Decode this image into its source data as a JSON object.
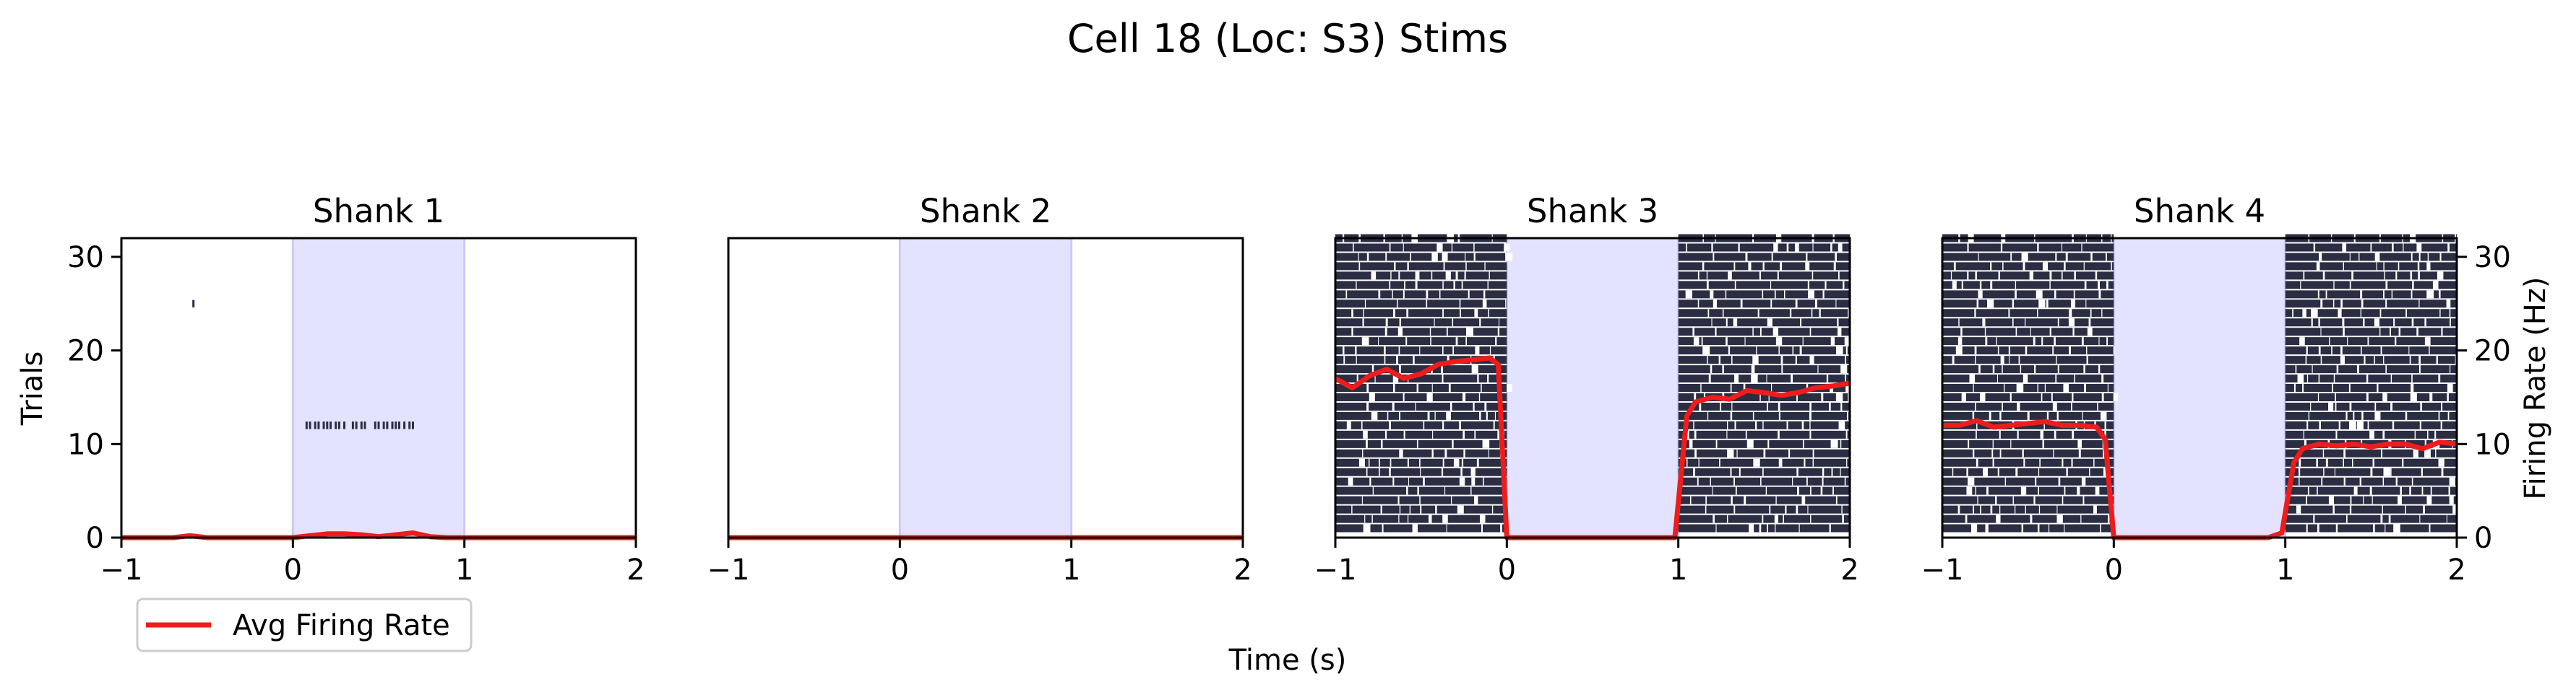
{
  "figure": {
    "title": "Cell 18 (Loc: S3) Stims",
    "xlabel": "Time (s)",
    "left_ylabel": "Trials",
    "right_ylabel": "Firing Rate (Hz)",
    "legend": {
      "label": "Avg Firing Rate",
      "color": "#ee1c1c",
      "placement": "lower-left"
    }
  },
  "colors": {
    "spike": "#2b2d42",
    "stim_fill": "#e3e3ff",
    "stim_edge": "#c9c9f4",
    "rate_line": "#ee1c1c",
    "axis": "#000000"
  },
  "chart_data": [
    {
      "type": "raster",
      "title": "Shank 1",
      "xlim": [
        -1,
        2
      ],
      "ylim": [
        0,
        32
      ],
      "xticks": [
        -1,
        0,
        1,
        2
      ],
      "yticks": [
        0,
        10,
        20,
        30
      ],
      "stim_window": [
        0,
        1
      ],
      "n_trials": 32,
      "spikes": [
        {
          "trial": 25,
          "times": [
            -0.58
          ]
        },
        {
          "trial": 12,
          "times": [
            0.08,
            0.1,
            0.13,
            0.15,
            0.18,
            0.2,
            0.22,
            0.25,
            0.27,
            0.3,
            0.35,
            0.37,
            0.4,
            0.42,
            0.48,
            0.5,
            0.53,
            0.55,
            0.58,
            0.6,
            0.62,
            0.65,
            0.68,
            0.7
          ]
        }
      ],
      "rate": {
        "x": [
          -1,
          -0.9,
          -0.8,
          -0.7,
          -0.6,
          -0.5,
          -0.4,
          -0.3,
          -0.2,
          -0.1,
          0,
          0.1,
          0.2,
          0.3,
          0.4,
          0.5,
          0.6,
          0.7,
          0.8,
          0.9,
          1.0,
          1.2,
          1.4,
          1.6,
          1.8,
          2.0
        ],
        "y": [
          0,
          0,
          0,
          0,
          0.2,
          0,
          0,
          0,
          0,
          0,
          0,
          0.2,
          0.4,
          0.4,
          0.3,
          0.1,
          0.3,
          0.5,
          0.1,
          0,
          0,
          0,
          0,
          0,
          0,
          0
        ]
      }
    },
    {
      "type": "raster",
      "title": "Shank 2",
      "xlim": [
        -1,
        2
      ],
      "ylim": [
        0,
        32
      ],
      "xticks": [
        -1,
        0,
        1,
        2
      ],
      "stim_window": [
        0,
        1
      ],
      "n_trials": 32,
      "spikes": [],
      "rate": {
        "x": [
          -1,
          2
        ],
        "y": [
          0,
          0
        ]
      }
    },
    {
      "type": "raster",
      "title": "Shank 3",
      "xlim": [
        -1,
        2
      ],
      "ylim": [
        0,
        32
      ],
      "xticks": [
        -1,
        0,
        1,
        2
      ],
      "stim_window": [
        0,
        1
      ],
      "n_trials": 32,
      "spike_rate_hz": 17,
      "spikes_during_stim": false,
      "rate": {
        "x": [
          -1,
          -0.9,
          -0.8,
          -0.7,
          -0.6,
          -0.5,
          -0.4,
          -0.3,
          -0.2,
          -0.1,
          -0.05,
          0.0,
          0.1,
          0.3,
          0.5,
          0.7,
          0.9,
          0.98,
          1.05,
          1.1,
          1.2,
          1.3,
          1.4,
          1.5,
          1.6,
          1.7,
          1.8,
          1.9,
          2.0
        ],
        "y": [
          17,
          16,
          17.3,
          18,
          17,
          17.5,
          18.5,
          18.8,
          19,
          19.2,
          18.5,
          0,
          0,
          0,
          0,
          0,
          0,
          0,
          13,
          14.5,
          15,
          14.8,
          15.7,
          15.5,
          15.2,
          15.5,
          16,
          16.2,
          16.5
        ]
      }
    },
    {
      "type": "raster",
      "title": "Shank 4",
      "xlim": [
        -1,
        2
      ],
      "ylim": [
        0,
        32
      ],
      "xticks": [
        -1,
        0,
        1,
        2
      ],
      "y2ticks": [
        0,
        10,
        20,
        30
      ],
      "stim_window": [
        0,
        1
      ],
      "n_trials": 32,
      "spike_rate_hz": 12,
      "spikes_during_stim": false,
      "rate": {
        "x": [
          -1,
          -0.9,
          -0.8,
          -0.7,
          -0.6,
          -0.5,
          -0.4,
          -0.3,
          -0.2,
          -0.1,
          -0.05,
          0.0,
          0.1,
          0.3,
          0.5,
          0.7,
          0.9,
          0.98,
          1.05,
          1.1,
          1.2,
          1.3,
          1.4,
          1.5,
          1.6,
          1.7,
          1.8,
          1.9,
          2.0
        ],
        "y": [
          12,
          12,
          12.5,
          11.8,
          12,
          12.2,
          12.4,
          12,
          12,
          11.8,
          10.5,
          0,
          0,
          0,
          0,
          0,
          0,
          0.5,
          8,
          9.5,
          10,
          9.8,
          10,
          9.7,
          10,
          10,
          9.5,
          10.2,
          10
        ]
      }
    }
  ]
}
